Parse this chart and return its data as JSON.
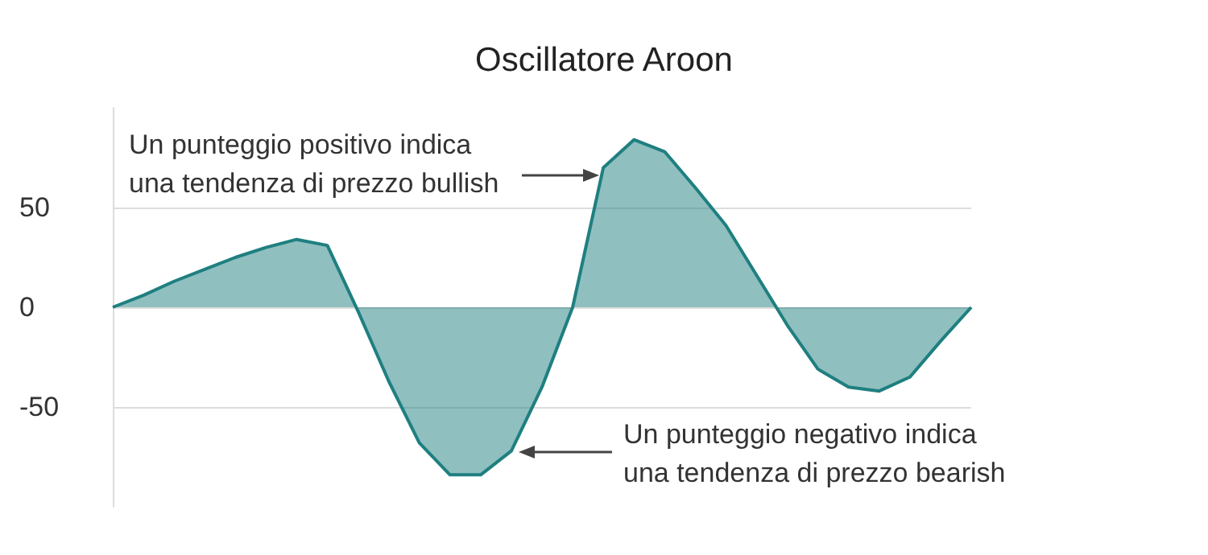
{
  "chart_data": {
    "type": "area",
    "title": "Oscillatore Aroon",
    "categories": [
      null,
      null,
      null,
      null,
      null,
      null,
      null,
      null,
      null,
      null,
      null,
      null,
      null,
      null,
      null,
      null,
      null,
      null,
      null,
      null,
      null,
      null,
      null,
      null,
      null,
      null,
      null,
      null,
      null
    ],
    "series": [
      {
        "color": "#1f7f80",
        "values": [
          0,
          6,
          13,
          19,
          25,
          30,
          34,
          31,
          -2,
          -37,
          -68,
          -84,
          -84,
          -72,
          -40,
          0,
          70,
          84,
          78,
          60,
          41,
          16,
          -9,
          -31,
          -40,
          -42,
          -35,
          -17,
          0
        ]
      }
    ],
    "ylim": [
      -100,
      100
    ],
    "yticks": [
      -50,
      0,
      50
    ],
    "grid": "y",
    "marker": "none",
    "annotations": [
      "Un punteggio positivo indica\nuna tendenza di prezzo bullish",
      "Un punteggio negativo indica\nuna tendenza di prezzo bearish"
    ]
  }
}
